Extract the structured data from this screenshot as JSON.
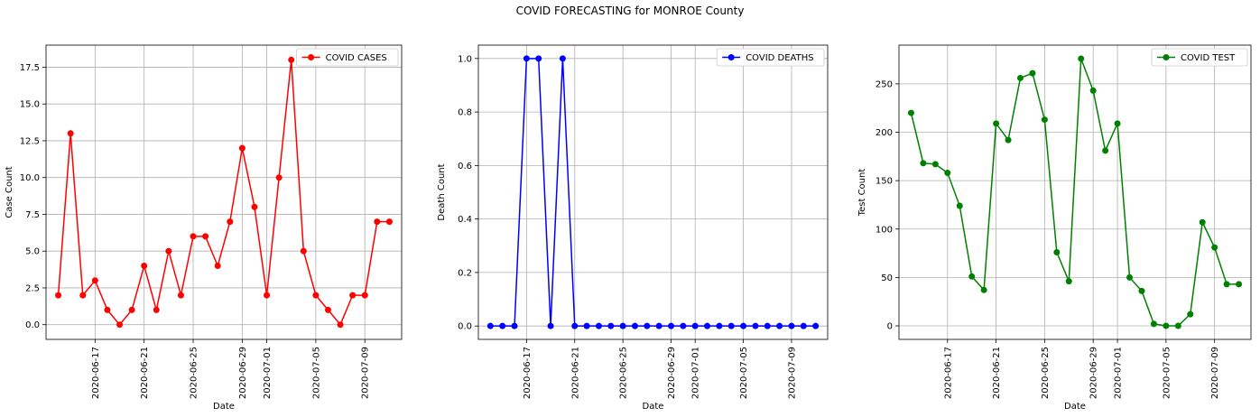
{
  "figure": {
    "title": "COVID FORECASTING for MONROE County"
  },
  "chart_data": [
    {
      "type": "line",
      "xlabel": "Date",
      "ylabel": "Case Count",
      "x_ticks": [
        "2020-06-17",
        "2020-06-21",
        "2020-06-25",
        "2020-06-29",
        "2020-07-01",
        "2020-07-05",
        "2020-07-09"
      ],
      "y_ticks": [
        "0.0",
        "2.5",
        "5.0",
        "7.5",
        "10.0",
        "12.5",
        "15.0",
        "17.5"
      ],
      "ylim": [
        -1.0,
        19.0
      ],
      "xlim": [
        "2020-06-13",
        "2020-07-12"
      ],
      "grid": true,
      "legend_position": "top-right",
      "series": [
        {
          "name": "COVID CASES",
          "color": "#ff0000",
          "x": [
            "2020-06-14",
            "2020-06-15",
            "2020-06-16",
            "2020-06-17",
            "2020-06-18",
            "2020-06-19",
            "2020-06-20",
            "2020-06-21",
            "2020-06-22",
            "2020-06-23",
            "2020-06-24",
            "2020-06-25",
            "2020-06-26",
            "2020-06-27",
            "2020-06-28",
            "2020-06-29",
            "2020-06-30",
            "2020-07-01",
            "2020-07-02",
            "2020-07-03",
            "2020-07-04",
            "2020-07-05",
            "2020-07-06",
            "2020-07-07",
            "2020-07-08",
            "2020-07-09",
            "2020-07-10",
            "2020-07-11"
          ],
          "values": [
            2,
            13,
            2,
            3,
            1,
            0,
            1,
            4,
            1,
            5,
            2,
            6,
            6,
            4,
            7,
            12,
            8,
            2,
            10,
            18,
            5,
            2,
            1,
            0,
            2,
            2,
            7,
            7
          ]
        }
      ]
    },
    {
      "type": "line",
      "xlabel": "Date",
      "ylabel": "Death Count",
      "x_ticks": [
        "2020-06-17",
        "2020-06-21",
        "2020-06-25",
        "2020-06-29",
        "2020-07-01",
        "2020-07-05",
        "2020-07-09"
      ],
      "y_ticks": [
        "0.0",
        "0.2",
        "0.4",
        "0.6",
        "0.8",
        "1.0"
      ],
      "ylim": [
        -0.05,
        1.05
      ],
      "xlim": [
        "2020-06-13",
        "2020-07-12"
      ],
      "grid": true,
      "legend_position": "top-right",
      "series": [
        {
          "name": "COVID DEATHS",
          "color": "#0000ff",
          "x": [
            "2020-06-14",
            "2020-06-15",
            "2020-06-16",
            "2020-06-17",
            "2020-06-18",
            "2020-06-19",
            "2020-06-20",
            "2020-06-21",
            "2020-06-22",
            "2020-06-23",
            "2020-06-24",
            "2020-06-25",
            "2020-06-26",
            "2020-06-27",
            "2020-06-28",
            "2020-06-29",
            "2020-06-30",
            "2020-07-01",
            "2020-07-02",
            "2020-07-03",
            "2020-07-04",
            "2020-07-05",
            "2020-07-06",
            "2020-07-07",
            "2020-07-08",
            "2020-07-09",
            "2020-07-10",
            "2020-07-11"
          ],
          "values": [
            0,
            0,
            0,
            1,
            1,
            0,
            1,
            0,
            0,
            0,
            0,
            0,
            0,
            0,
            0,
            0,
            0,
            0,
            0,
            0,
            0,
            0,
            0,
            0,
            0,
            0,
            0,
            0
          ]
        }
      ]
    },
    {
      "type": "line",
      "xlabel": "Date",
      "ylabel": "Test Count",
      "x_ticks": [
        "2020-06-17",
        "2020-06-21",
        "2020-06-25",
        "2020-06-29",
        "2020-07-01",
        "2020-07-05",
        "2020-07-09"
      ],
      "y_ticks": [
        "0",
        "50",
        "100",
        "150",
        "200",
        "250"
      ],
      "ylim": [
        -14,
        290
      ],
      "xlim": [
        "2020-06-13",
        "2020-07-12"
      ],
      "grid": true,
      "legend_position": "top-right",
      "series": [
        {
          "name": "COVID TEST",
          "color": "#008000",
          "x": [
            "2020-06-14",
            "2020-06-15",
            "2020-06-16",
            "2020-06-17",
            "2020-06-18",
            "2020-06-19",
            "2020-06-20",
            "2020-06-21",
            "2020-06-22",
            "2020-06-23",
            "2020-06-24",
            "2020-06-25",
            "2020-06-26",
            "2020-06-27",
            "2020-06-28",
            "2020-06-29",
            "2020-06-30",
            "2020-07-01",
            "2020-07-02",
            "2020-07-03",
            "2020-07-04",
            "2020-07-05",
            "2020-07-06",
            "2020-07-07",
            "2020-07-08",
            "2020-07-09",
            "2020-07-10",
            "2020-07-11"
          ],
          "values": [
            220,
            168,
            167,
            158,
            124,
            51,
            37,
            209,
            192,
            256,
            261,
            213,
            76,
            46,
            276,
            243,
            181,
            209,
            50,
            36,
            2,
            0,
            0,
            12,
            107,
            81,
            43,
            43
          ]
        }
      ]
    }
  ]
}
